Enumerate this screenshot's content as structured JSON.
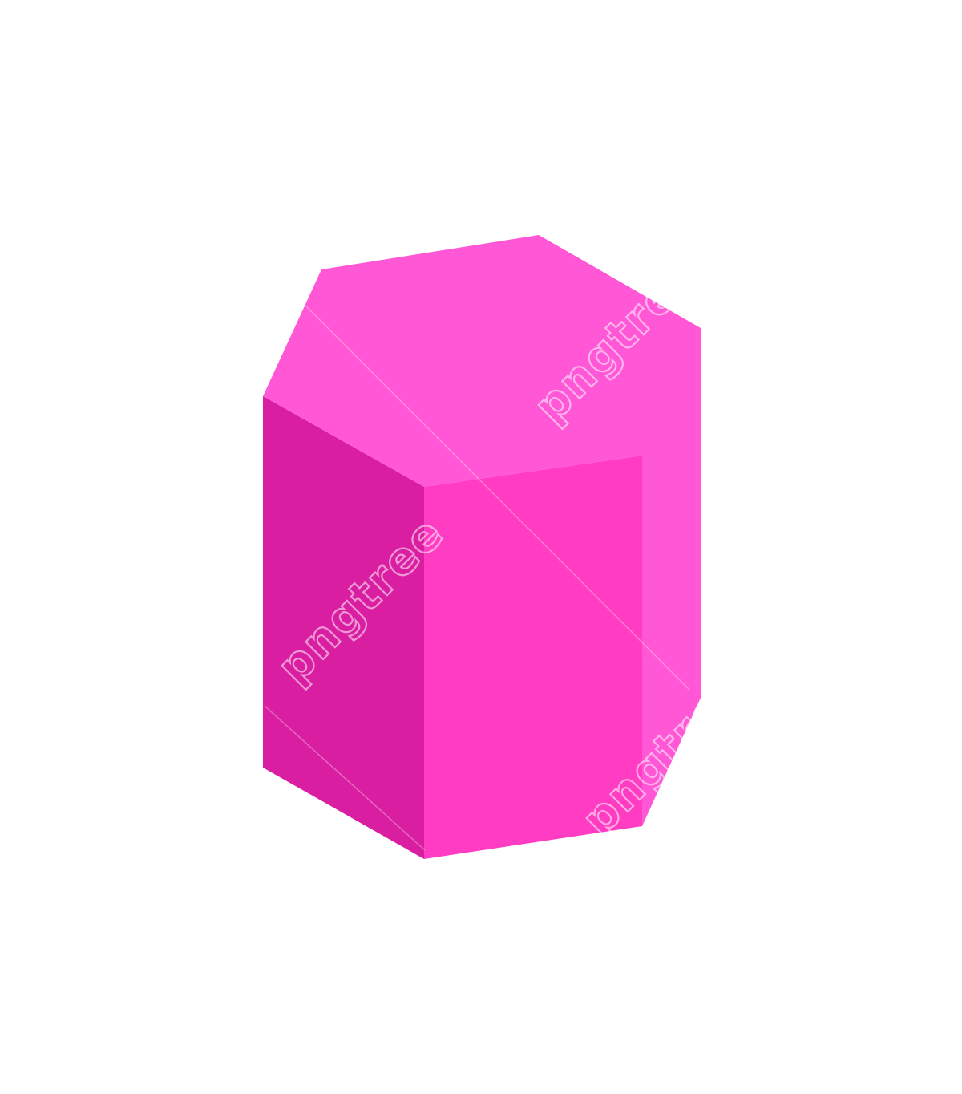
{
  "illustration": {
    "subject": "hexagonal-prism",
    "colors": {
      "background": "#ffffff",
      "top_face": "#ff57d6",
      "left_face": "#d91ea1",
      "front_face": "#ff3cc2",
      "right_face": "#ff57d6"
    }
  },
  "watermark": {
    "text": "pngtree",
    "color": "#ffffff",
    "opacity": 0.55
  }
}
